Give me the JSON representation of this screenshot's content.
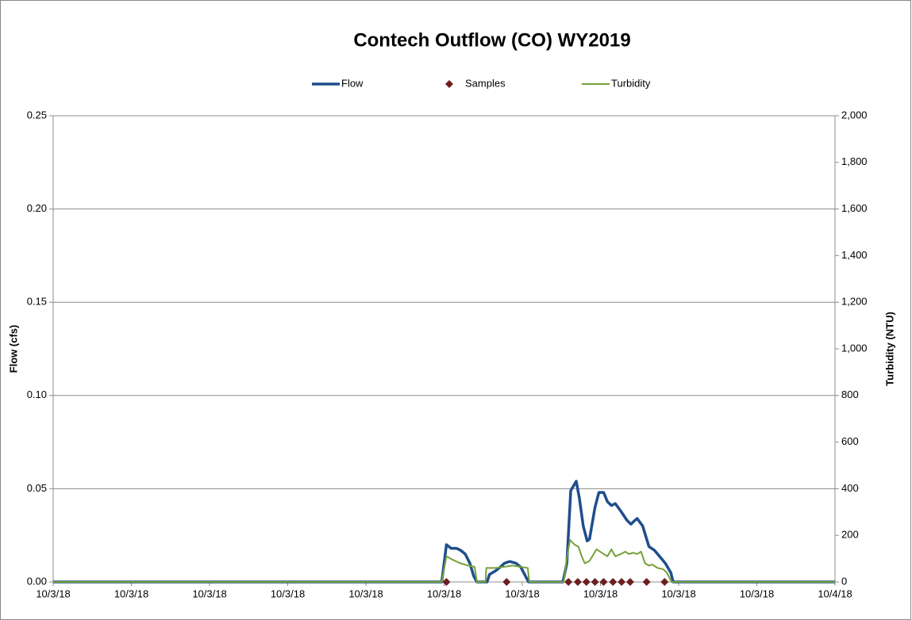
{
  "chart_data": {
    "type": "line",
    "title": "Contech Outflow (CO) WY2019",
    "y_label": "Flow (cfs)",
    "y2_label": "Turbidity (NTU)",
    "legend": "top",
    "grid": true,
    "xlim": [
      0,
      1
    ],
    "xticks": [
      {
        "value": 0,
        "label": "10/3/18"
      },
      {
        "value": 0.1,
        "label": "10/3/18"
      },
      {
        "value": 0.2,
        "label": "10/3/18"
      },
      {
        "value": 0.3,
        "label": "10/3/18"
      },
      {
        "value": 0.4,
        "label": "10/3/18"
      },
      {
        "value": 0.5,
        "label": "10/3/18"
      },
      {
        "value": 0.6,
        "label": "10/3/18"
      },
      {
        "value": 0.7,
        "label": "10/3/18"
      },
      {
        "value": 0.8,
        "label": "10/3/18"
      },
      {
        "value": 0.9,
        "label": "10/3/18"
      },
      {
        "value": 1,
        "label": "10/4/18"
      }
    ],
    "ylim": [
      0,
      0.25
    ],
    "yticks": [
      {
        "value": 0,
        "label": "0.00"
      },
      {
        "value": 0.05,
        "label": "0.05"
      },
      {
        "value": 0.1,
        "label": "0.10"
      },
      {
        "value": 0.15,
        "label": "0.15"
      },
      {
        "value": 0.2,
        "label": "0.20"
      },
      {
        "value": 0.25,
        "label": "0.25"
      }
    ],
    "y2lim": [
      0,
      2000
    ],
    "y2ticks": [
      0,
      200,
      400,
      600,
      800,
      {
        "value": 1000,
        "label": "1,000"
      },
      {
        "value": 1200,
        "label": "1,200"
      },
      {
        "value": 1400,
        "label": "1,400"
      },
      {
        "value": 1600,
        "label": "1,600"
      },
      {
        "value": 1800,
        "label": "1,800"
      },
      {
        "value": 2000,
        "label": "2,000"
      }
    ],
    "series": [
      {
        "name": "Flow",
        "color": "#1f4e8c",
        "kind": "line",
        "x": [
          0,
          0.497,
          0.503,
          0.509,
          0.516,
          0.521,
          0.527,
          0.533,
          0.538,
          0.542,
          0.555,
          0.558,
          0.566,
          0.572,
          0.577,
          0.584,
          0.592,
          0.598,
          0.603,
          0.608,
          0.652,
          0.657,
          0.662,
          0.669,
          0.673,
          0.678,
          0.683,
          0.686,
          0.693,
          0.698,
          0.704,
          0.709,
          0.714,
          0.719,
          0.726,
          0.734,
          0.739,
          0.744,
          0.747,
          0.754,
          0.762,
          0.769,
          0.777,
          0.783,
          0.79,
          0.793,
          1
        ],
        "values": [
          0,
          0,
          0.02,
          0.018,
          0.018,
          0.017,
          0.015,
          0.01,
          0.003,
          0,
          0,
          0.004,
          0.006,
          0.008,
          0.01,
          0.011,
          0.01,
          0.008,
          0.004,
          0,
          0,
          0.01,
          0.049,
          0.054,
          0.045,
          0.03,
          0.022,
          0.023,
          0.04,
          0.048,
          0.048,
          0.043,
          0.041,
          0.042,
          0.038,
          0.033,
          0.031,
          0.033,
          0.034,
          0.03,
          0.019,
          0.017,
          0.013,
          0.01,
          0.005,
          0,
          0
        ]
      },
      {
        "name": "Samples",
        "color": "#6b1f1f",
        "kind": "marker",
        "x": [
          0.503,
          0.58,
          0.659,
          0.671,
          0.682,
          0.693,
          0.704,
          0.716,
          0.727,
          0.738,
          0.759,
          0.782
        ],
        "values": [
          0,
          0,
          0,
          0,
          0,
          0,
          0,
          0,
          0,
          0,
          0,
          0
        ]
      },
      {
        "name": "Turbidity",
        "color": "#77a03a",
        "kind": "line",
        "axis": "y2",
        "x": [
          0,
          0.497,
          0.503,
          0.511,
          0.521,
          0.531,
          0.539,
          0.542,
          0.553,
          0.554,
          0.566,
          0.577,
          0.587,
          0.597,
          0.607,
          0.609,
          0.653,
          0.657,
          0.661,
          0.667,
          0.672,
          0.676,
          0.68,
          0.686,
          0.695,
          0.704,
          0.709,
          0.714,
          0.719,
          0.726,
          0.732,
          0.736,
          0.742,
          0.747,
          0.752,
          0.757,
          0.762,
          0.766,
          0.773,
          0.78,
          0.785,
          0.791,
          1
        ],
        "values": [
          0,
          0,
          110,
          95,
          80,
          70,
          65,
          0,
          0,
          60,
          60,
          65,
          70,
          65,
          60,
          0,
          0,
          100,
          180,
          160,
          150,
          110,
          80,
          90,
          140,
          120,
          110,
          140,
          110,
          120,
          130,
          120,
          125,
          120,
          130,
          80,
          70,
          75,
          60,
          55,
          40,
          0,
          0
        ]
      }
    ]
  }
}
